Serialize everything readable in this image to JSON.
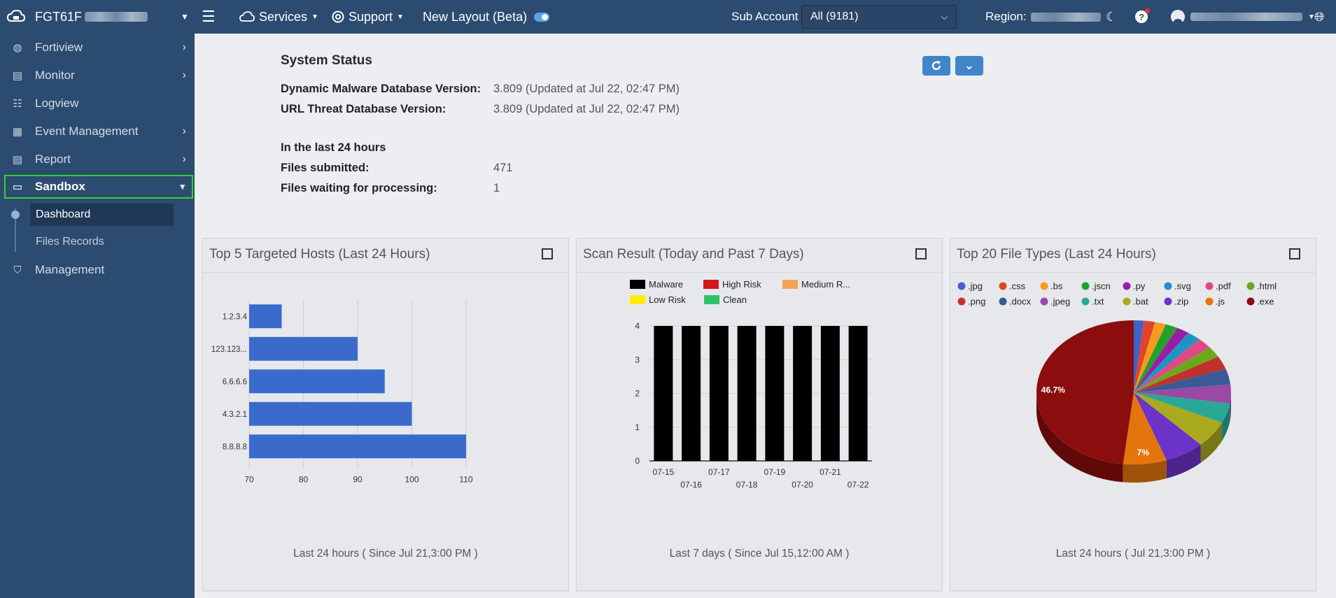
{
  "topbar": {
    "device_name": "FGT61F",
    "services_label": "Services",
    "support_label": "Support",
    "new_layout_label": "New Layout (Beta)",
    "sub_account_label": "Sub Account",
    "sub_account_value": "All (9181)",
    "region_label": "Region:"
  },
  "sidebar": {
    "items": [
      {
        "label": "Fortiview",
        "icon": "globe-icon"
      },
      {
        "label": "Monitor",
        "icon": "document-icon"
      },
      {
        "label": "Logview",
        "icon": "list-icon"
      },
      {
        "label": "Event Management",
        "icon": "clipboard-icon"
      },
      {
        "label": "Report",
        "icon": "report-icon"
      },
      {
        "label": "Sandbox",
        "icon": "monitor-icon"
      },
      {
        "label": "Management",
        "icon": "shield-icon"
      }
    ],
    "sub_items": [
      {
        "label": "Dashboard"
      },
      {
        "label": "Files Records"
      }
    ]
  },
  "status": {
    "title": "System Status",
    "rows": [
      {
        "key": "Dynamic Malware Database Version:",
        "value": "3.809 (Updated at Jul 22, 02:47 PM)"
      },
      {
        "key": "URL Threat Database Version:",
        "value": "3.809 (Updated at Jul 22, 02:47 PM)"
      },
      {
        "key": "In the last 24 hours",
        "value": ""
      },
      {
        "key": "Files submitted:",
        "value": "471"
      },
      {
        "key": "Files waiting for processing:",
        "value": "1"
      }
    ]
  },
  "panels": [
    {
      "title": "Top 5 Targeted Hosts (Last 24 Hours)",
      "footer": "Last 24 hours ( Since Jul 21,3:00 PM )"
    },
    {
      "title": "Scan Result (Today and Past 7 Days)",
      "footer": "Last 7 days ( Since Jul 15,12:00 AM )"
    },
    {
      "title": "Top 20 File Types (Last 24 Hours)",
      "footer": "Last 24 hours ( Jul 21,3:00 PM )"
    }
  ],
  "chart_data": [
    {
      "type": "bar",
      "orientation": "horizontal",
      "categories": [
        "1.2.3.4",
        "123.123...",
        "6.6.6.6",
        "4.3.2.1",
        "8.8.8.8"
      ],
      "values": [
        76,
        90,
        95,
        100,
        110
      ],
      "xlim": [
        70,
        110
      ],
      "xticks": [
        70,
        80,
        90,
        100,
        110
      ],
      "color": "#3a6bcc",
      "grid": true
    },
    {
      "type": "bar",
      "stacked": true,
      "categories": [
        "07-15",
        "07-16",
        "07-17",
        "07-18",
        "07-19",
        "07-20",
        "07-21",
        "07-22"
      ],
      "series": [
        {
          "name": "Malware",
          "color": "#000000",
          "values": [
            4,
            4,
            4,
            4,
            4,
            4,
            4,
            4
          ]
        },
        {
          "name": "High Risk",
          "color": "#d0181b",
          "values": [
            0,
            0,
            0,
            0,
            0,
            0,
            0,
            0
          ]
        },
        {
          "name": "Medium R...",
          "color": "#f7a352",
          "values": [
            0,
            0,
            0,
            0,
            0,
            0,
            0,
            0
          ]
        },
        {
          "name": "Low Risk",
          "color": "#ffee00",
          "values": [
            0,
            0,
            0,
            0,
            0,
            0,
            0,
            0
          ]
        },
        {
          "name": "Clean",
          "color": "#2ec36b",
          "values": [
            0,
            0,
            0,
            0,
            0,
            0,
            0,
            0
          ]
        }
      ],
      "ylim": [
        0,
        4
      ],
      "yticks": [
        0,
        1,
        2,
        3,
        4
      ],
      "legend": "top",
      "grid": true
    },
    {
      "type": "pie",
      "style": "3d",
      "legend": "top",
      "labels": [
        ".jpg",
        ".css",
        ".bs",
        ".jscn",
        ".py",
        ".svg",
        ".pdf",
        ".html",
        ".png",
        ".docx",
        ".jpeg",
        ".txt",
        ".bat",
        ".zip",
        ".js",
        ".exe"
      ],
      "colors": [
        "#3f63c9",
        "#e0452a",
        "#f59b1c",
        "#24a02c",
        "#9b1da7",
        "#1f94c4",
        "#de4a85",
        "#6aaa1a",
        "#c0312e",
        "#3a5a95",
        "#9a4aa6",
        "#2aa897",
        "#a9aa1e",
        "#6b33c8",
        "#e4750d",
        "#8b0d0d"
      ],
      "values": [
        1.6,
        1.8,
        1.8,
        2.0,
        2.0,
        2.2,
        2.4,
        2.4,
        2.9,
        3.4,
        4.1,
        4.3,
        5.8,
        6.4,
        7.0,
        46.7
      ],
      "data_labels": [
        {
          "label": ".exe",
          "text": "46.7%"
        },
        {
          "label": ".js",
          "text": "7%"
        }
      ]
    }
  ]
}
